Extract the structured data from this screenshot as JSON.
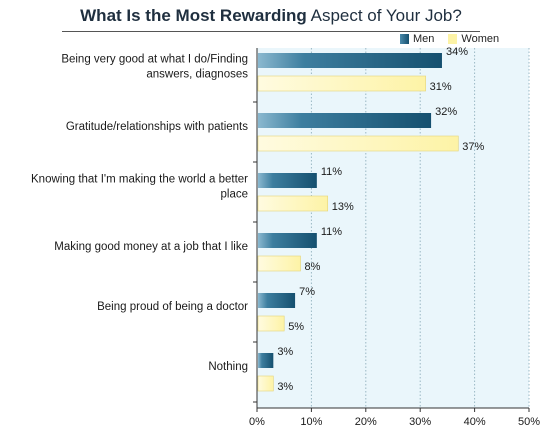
{
  "chart_data": {
    "type": "bar",
    "orientation": "horizontal",
    "title_bold": "What Is the Most Rewarding",
    "title_rest": " Aspect of Your Job?",
    "categories": [
      [
        "Being very good at what I do/Finding",
        "answers, diagnoses"
      ],
      [
        "Gratitude/relationships with patients"
      ],
      [
        "Knowing that I'm making the world a better",
        "place"
      ],
      [
        "Making good money at a job that I like"
      ],
      [
        "Being proud of being a doctor"
      ],
      [
        "Nothing"
      ]
    ],
    "series": [
      {
        "name": "Men",
        "values": [
          34,
          32,
          11,
          11,
          7,
          3
        ],
        "labels": [
          "34%",
          "32%",
          "11%",
          "11%",
          "7%",
          "3%"
        ]
      },
      {
        "name": "Women",
        "values": [
          31,
          37,
          13,
          8,
          5,
          3
        ],
        "labels": [
          "31%",
          "37%",
          "13%",
          "8%",
          "5%",
          "3%"
        ]
      }
    ],
    "xlim": [
      0,
      50
    ],
    "xticks": [
      "0%",
      "10%",
      "20%",
      "30%",
      "40%",
      "50%"
    ],
    "grid": true,
    "legend_position": "top-right",
    "colors": {
      "men_light": "#8ab8cf",
      "men_dark": "#15506f",
      "women": "#fdf3a6",
      "women_edge": "#e4d47a",
      "plot_bg": "#eaf6fb",
      "grid": "#9ab8c4"
    }
  }
}
